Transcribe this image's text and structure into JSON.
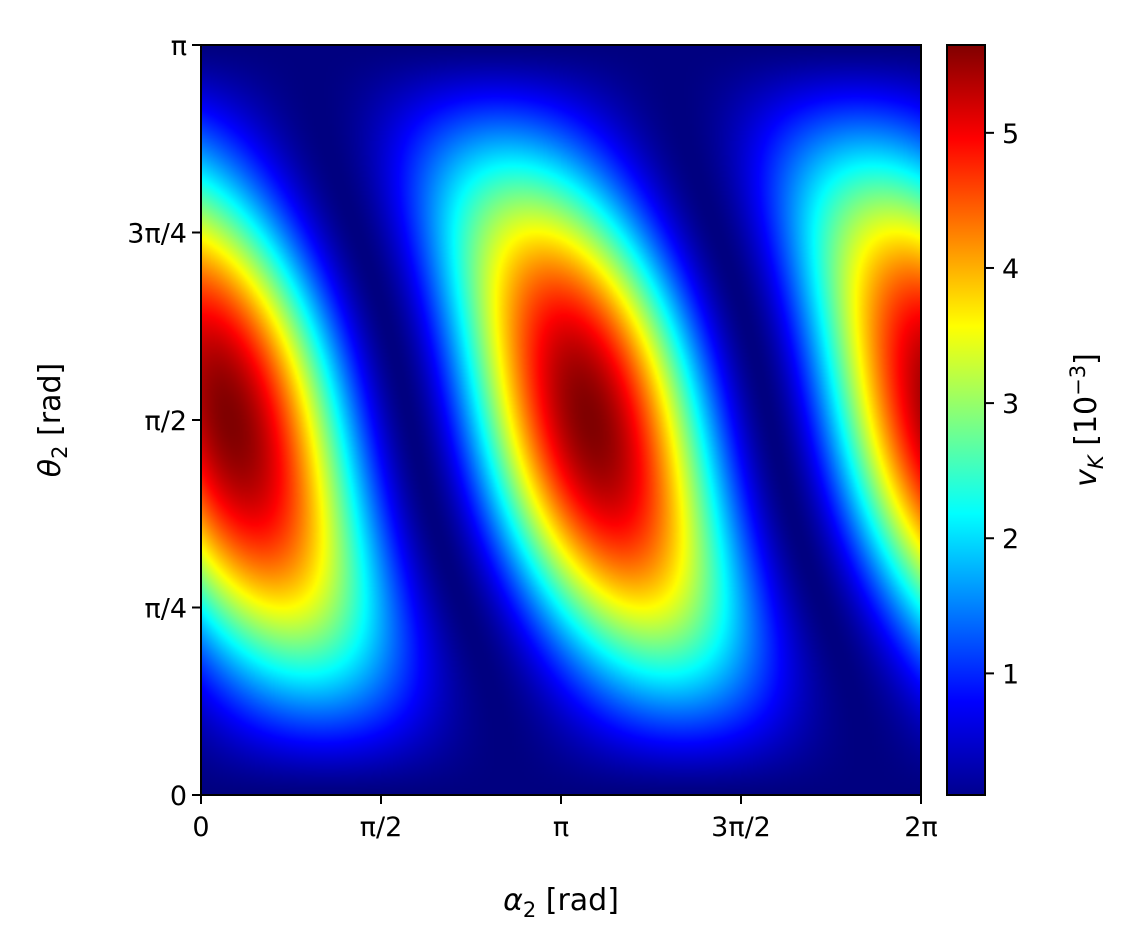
{
  "chart_data": {
    "type": "heatmap",
    "title": "",
    "colormap": "jet",
    "contour_color": "#000000",
    "xlabel": {
      "symbol": "α",
      "sub": "2",
      "rest": " [rad]"
    },
    "ylabel": {
      "symbol": "θ",
      "sub": "2",
      "rest": " [rad]"
    },
    "colorbar_label": {
      "symbol": "v",
      "sub": "K",
      "rest": " [10",
      "sup": "−3",
      "end": "]"
    },
    "xlim": [
      0,
      6.2832
    ],
    "ylim": [
      0,
      3.1416
    ],
    "x_ticks": [
      {
        "value": 0,
        "label": "0"
      },
      {
        "value": 1.5708,
        "label": "π/2"
      },
      {
        "value": 3.1416,
        "label": "π"
      },
      {
        "value": 4.7124,
        "label": "3π/2"
      },
      {
        "value": 6.2832,
        "label": "2π"
      }
    ],
    "y_ticks": [
      {
        "value": 0,
        "label": "0"
      },
      {
        "value": 0.7854,
        "label": "π/4"
      },
      {
        "value": 1.5708,
        "label": "π/2"
      },
      {
        "value": 2.3562,
        "label": "3π/4"
      },
      {
        "value": 3.1416,
        "label": "π"
      }
    ],
    "colorbar_range": [
      0.1,
      5.65
    ],
    "colorbar_ticks": [
      {
        "value": 1,
        "label": "1"
      },
      {
        "value": 2,
        "label": "2"
      },
      {
        "value": 3,
        "label": "3"
      },
      {
        "value": 4,
        "label": "4"
      },
      {
        "value": 5,
        "label": "5"
      }
    ],
    "maxima": [
      {
        "x": 0.25,
        "y": 1.57,
        "value": 5.65
      },
      {
        "x": 3.39,
        "y": 1.57,
        "value": 5.65
      },
      {
        "x": 6.53,
        "y": 1.57,
        "value": 5.65
      }
    ],
    "contour_levels": [
      1.0,
      2.0,
      3.0,
      4.0,
      5.0
    ]
  }
}
